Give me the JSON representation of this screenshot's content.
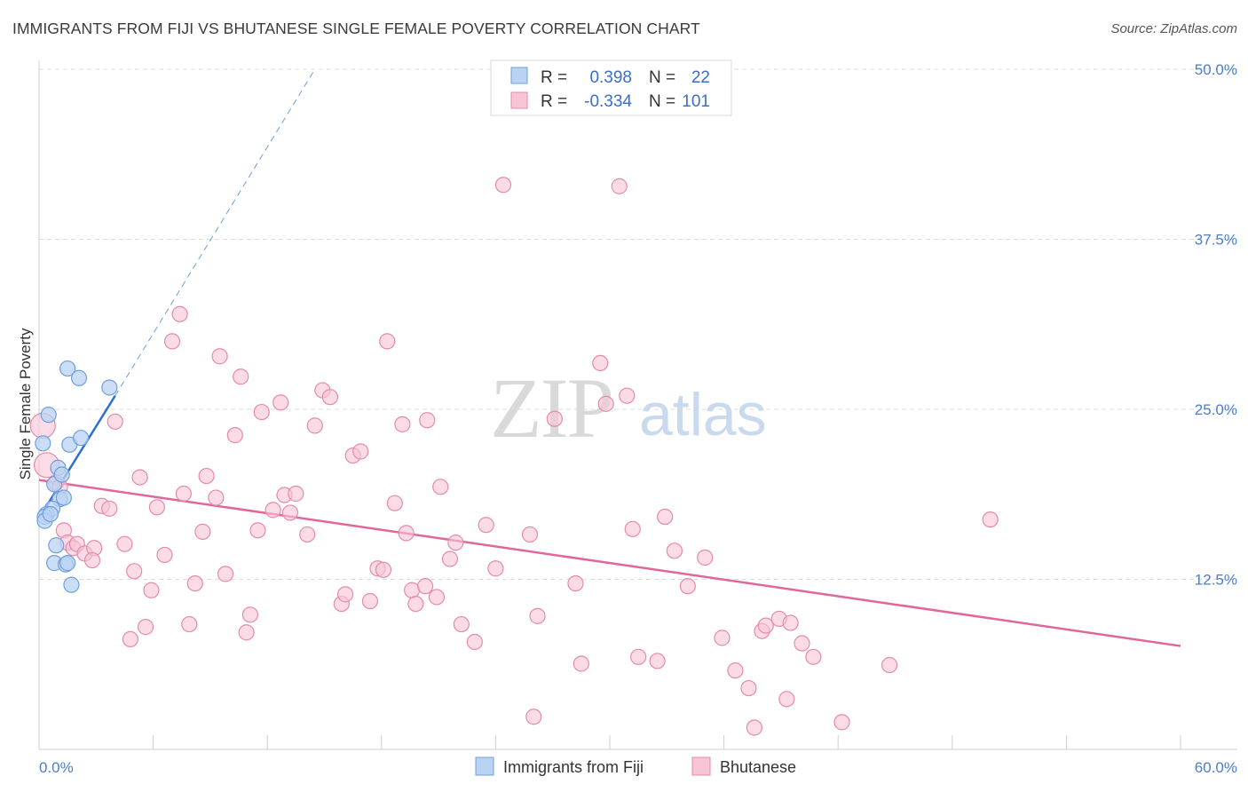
{
  "title": "IMMIGRANTS FROM FIJI VS BHUTANESE SINGLE FEMALE POVERTY CORRELATION CHART",
  "source": "Source: ZipAtlas.com",
  "watermark": {
    "zip": "ZIP",
    "atlas": "atlas"
  },
  "colors": {
    "fiji_fill": "#b9d3f3",
    "fiji_stroke": "#6e9fdc",
    "fiji_line": "#2f6fd1",
    "bhutan_fill": "#f8c4d6",
    "bhutan_stroke": "#e58aab",
    "bhutan_line": "#e0679a",
    "grid": "#dddddd",
    "tick_text": "#4a7ec8"
  },
  "legend": {
    "rows": [
      {
        "r_label": "R =",
        "r_value": "0.398",
        "n_label": "N =",
        "n_value": "22"
      },
      {
        "r_label": "R =",
        "r_value": "-0.334",
        "n_label": "N =",
        "n_value": "101"
      }
    ]
  },
  "chart_data": {
    "type": "scatter",
    "title": "IMMIGRANTS FROM FIJI VS BHUTANESE SINGLE FEMALE POVERTY CORRELATION CHART",
    "xlabel": "",
    "ylabel": "Single Female Poverty",
    "xlim": [
      0,
      60
    ],
    "ylim": [
      0,
      50
    ],
    "x_tick_labels": {
      "min": "0.0%",
      "max": "60.0%"
    },
    "y_ticks": [
      {
        "value": 12.5,
        "label": "12.5%"
      },
      {
        "value": 25.0,
        "label": "25.0%"
      },
      {
        "value": 37.5,
        "label": "37.5%"
      },
      {
        "value": 50.0,
        "label": "50.0%"
      }
    ],
    "series": [
      {
        "name": "Immigrants from Fiji",
        "r": 0.398,
        "n": 22,
        "trend": {
          "x0": 0.0,
          "y0": 17.0,
          "x1": 4.0,
          "y1": 26.0,
          "dashed_to_x": 14.5,
          "dashed_to_y": 50.0
        },
        "points": [
          [
            0.2,
            22.5
          ],
          [
            0.5,
            24.6
          ],
          [
            0.8,
            19.5
          ],
          [
            1.0,
            20.7
          ],
          [
            1.2,
            20.2
          ],
          [
            1.1,
            18.4
          ],
          [
            1.3,
            18.5
          ],
          [
            0.7,
            17.7
          ],
          [
            0.4,
            17.3
          ],
          [
            0.3,
            17.1
          ],
          [
            0.3,
            16.8
          ],
          [
            0.9,
            15.0
          ],
          [
            1.5,
            28.0
          ],
          [
            2.1,
            27.3
          ],
          [
            1.6,
            22.4
          ],
          [
            2.2,
            22.9
          ],
          [
            3.7,
            26.6
          ],
          [
            0.8,
            13.7
          ],
          [
            1.4,
            13.6
          ],
          [
            1.5,
            13.7
          ],
          [
            1.7,
            12.1
          ],
          [
            0.6,
            17.3
          ]
        ]
      },
      {
        "name": "Bhutanese",
        "r": -0.334,
        "n": 101,
        "trend": {
          "x0": 0.0,
          "y0": 19.8,
          "x1": 60.0,
          "y1": 7.6
        },
        "points": [
          [
            0.2,
            23.8
          ],
          [
            0.4,
            20.9
          ],
          [
            0.9,
            19.6
          ],
          [
            1.1,
            19.3
          ],
          [
            1.3,
            16.1
          ],
          [
            1.5,
            15.2
          ],
          [
            1.8,
            14.8
          ],
          [
            2.0,
            15.1
          ],
          [
            2.4,
            14.4
          ],
          [
            2.9,
            14.8
          ],
          [
            2.8,
            13.9
          ],
          [
            3.3,
            17.9
          ],
          [
            3.7,
            17.7
          ],
          [
            4.0,
            24.1
          ],
          [
            4.5,
            15.1
          ],
          [
            4.8,
            8.1
          ],
          [
            5.0,
            13.1
          ],
          [
            5.3,
            20.0
          ],
          [
            5.6,
            9.0
          ],
          [
            5.9,
            11.7
          ],
          [
            6.2,
            17.8
          ],
          [
            6.6,
            14.3
          ],
          [
            7.0,
            30.0
          ],
          [
            7.4,
            32.0
          ],
          [
            7.6,
            18.8
          ],
          [
            7.9,
            9.2
          ],
          [
            8.2,
            12.2
          ],
          [
            8.6,
            16.0
          ],
          [
            8.8,
            20.1
          ],
          [
            9.3,
            18.5
          ],
          [
            9.5,
            28.9
          ],
          [
            9.8,
            12.9
          ],
          [
            10.3,
            23.1
          ],
          [
            10.6,
            27.4
          ],
          [
            10.9,
            8.6
          ],
          [
            11.1,
            9.9
          ],
          [
            11.5,
            16.1
          ],
          [
            11.7,
            24.8
          ],
          [
            12.3,
            17.6
          ],
          [
            12.7,
            25.5
          ],
          [
            12.9,
            18.7
          ],
          [
            13.2,
            17.4
          ],
          [
            13.5,
            18.8
          ],
          [
            14.1,
            15.8
          ],
          [
            14.5,
            23.8
          ],
          [
            14.9,
            26.4
          ],
          [
            15.3,
            25.9
          ],
          [
            15.9,
            10.7
          ],
          [
            16.1,
            11.4
          ],
          [
            16.5,
            21.6
          ],
          [
            16.9,
            21.9
          ],
          [
            17.4,
            10.9
          ],
          [
            17.8,
            13.3
          ],
          [
            18.1,
            13.2
          ],
          [
            18.3,
            30.0
          ],
          [
            18.7,
            18.1
          ],
          [
            19.1,
            23.9
          ],
          [
            19.3,
            15.9
          ],
          [
            19.6,
            11.7
          ],
          [
            19.8,
            10.7
          ],
          [
            20.3,
            12.0
          ],
          [
            20.4,
            24.2
          ],
          [
            20.9,
            11.2
          ],
          [
            21.1,
            19.3
          ],
          [
            21.6,
            14.0
          ],
          [
            21.9,
            15.2
          ],
          [
            22.2,
            9.2
          ],
          [
            22.9,
            7.9
          ],
          [
            23.5,
            16.5
          ],
          [
            24.0,
            13.3
          ],
          [
            24.4,
            41.5
          ],
          [
            26.0,
            2.4
          ],
          [
            25.8,
            15.8
          ],
          [
            26.2,
            9.8
          ],
          [
            27.1,
            24.3
          ],
          [
            28.2,
            12.2
          ],
          [
            28.5,
            6.3
          ],
          [
            29.5,
            28.4
          ],
          [
            30.5,
            41.4
          ],
          [
            29.8,
            25.4
          ],
          [
            30.9,
            26.0
          ],
          [
            31.2,
            16.2
          ],
          [
            31.5,
            6.8
          ],
          [
            32.5,
            6.5
          ],
          [
            32.9,
            17.1
          ],
          [
            33.4,
            14.6
          ],
          [
            34.1,
            12.0
          ],
          [
            35.0,
            14.1
          ],
          [
            35.9,
            8.2
          ],
          [
            36.6,
            5.8
          ],
          [
            37.3,
            4.5
          ],
          [
            37.6,
            1.6
          ],
          [
            38.0,
            8.7
          ],
          [
            38.2,
            9.1
          ],
          [
            38.9,
            9.6
          ],
          [
            39.3,
            3.7
          ],
          [
            39.5,
            9.3
          ],
          [
            40.1,
            7.8
          ],
          [
            40.7,
            6.8
          ],
          [
            42.2,
            2.0
          ],
          [
            44.7,
            6.2
          ],
          [
            50.0,
            16.9
          ]
        ]
      }
    ],
    "legend": [
      "Immigrants from Fiji",
      "Bhutanese"
    ]
  }
}
